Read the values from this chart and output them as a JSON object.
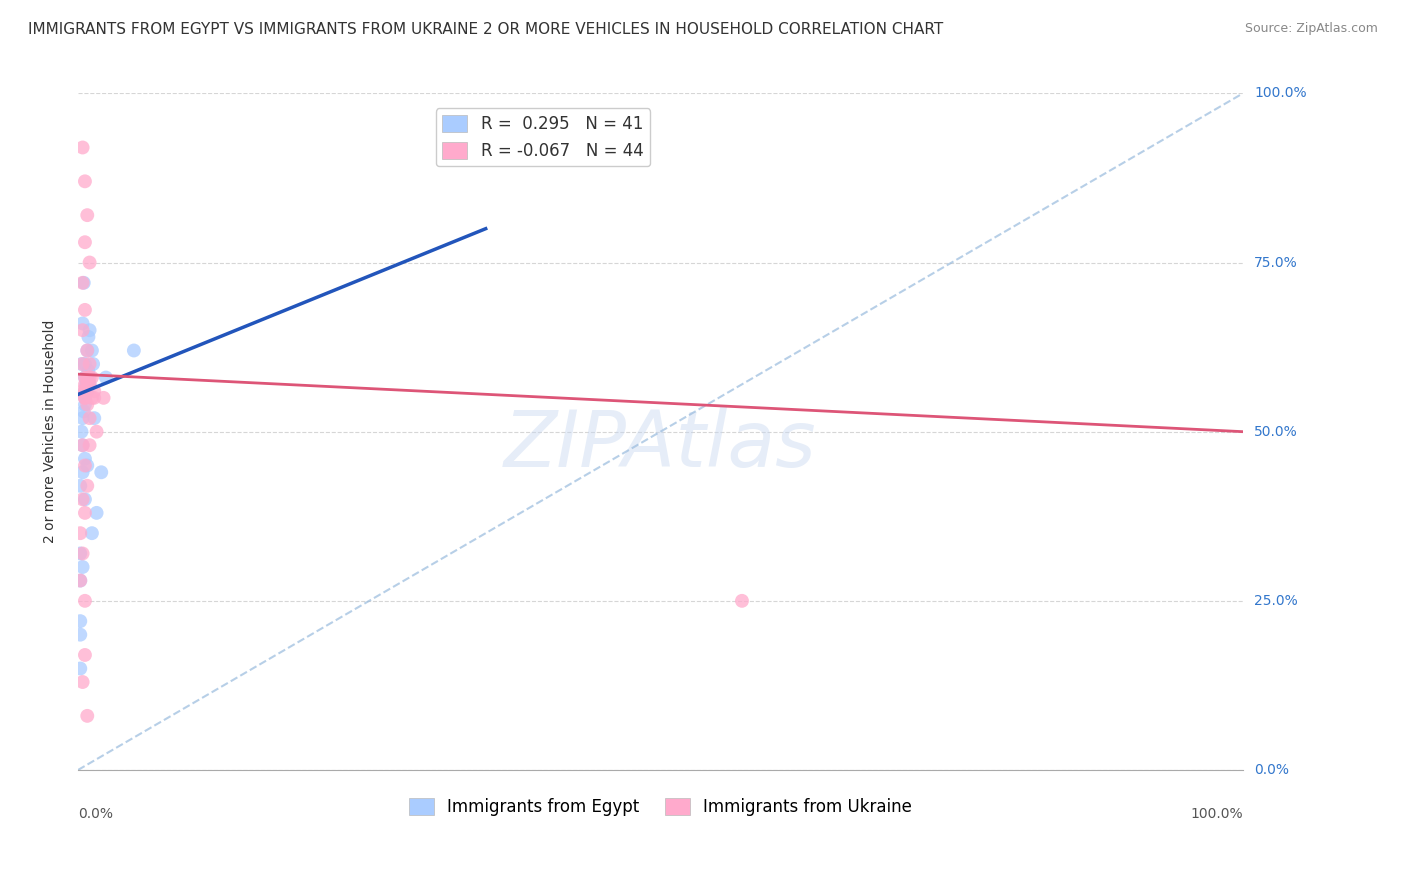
{
  "title": "IMMIGRANTS FROM EGYPT VS IMMIGRANTS FROM UKRAINE 2 OR MORE VEHICLES IN HOUSEHOLD CORRELATION CHART",
  "source": "Source: ZipAtlas.com",
  "ylabel": "2 or more Vehicles in Household",
  "ytick_labels": [
    "0.0%",
    "25.0%",
    "50.0%",
    "75.0%",
    "100.0%"
  ],
  "ytick_values": [
    0.0,
    0.25,
    0.5,
    0.75,
    1.0
  ],
  "xlim": [
    0.0,
    1.0
  ],
  "ylim": [
    0.0,
    1.0
  ],
  "legend_egypt_R": 0.295,
  "legend_egypt_N": 41,
  "legend_ukraine_R": -0.067,
  "legend_ukraine_N": 44,
  "egypt_color": "#aaccff",
  "ukraine_color": "#ffaacc",
  "egypt_line_color": "#2255bb",
  "ukraine_line_color": "#dd5577",
  "ref_line_color": "#99bbdd",
  "watermark_color": "#c8d8f0",
  "background_color": "#ffffff",
  "egypt_points_x": [
    0.003,
    0.005,
    0.004,
    0.006,
    0.005,
    0.007,
    0.008,
    0.006,
    0.009,
    0.01,
    0.008,
    0.009,
    0.012,
    0.006,
    0.008,
    0.013,
    0.004,
    0.006,
    0.003,
    0.005,
    0.008,
    0.006,
    0.01,
    0.004,
    0.002,
    0.004,
    0.006,
    0.008,
    0.006,
    0.014,
    0.024,
    0.048,
    0.002,
    0.012,
    0.016,
    0.02,
    0.002,
    0.004,
    0.002,
    0.002,
    0.002
  ],
  "egypt_points_y": [
    0.6,
    0.72,
    0.66,
    0.58,
    0.555,
    0.57,
    0.62,
    0.6,
    0.64,
    0.65,
    0.57,
    0.59,
    0.62,
    0.54,
    0.56,
    0.6,
    0.52,
    0.55,
    0.5,
    0.53,
    0.58,
    0.56,
    0.57,
    0.48,
    0.42,
    0.44,
    0.46,
    0.45,
    0.4,
    0.52,
    0.58,
    0.62,
    0.32,
    0.35,
    0.38,
    0.44,
    0.28,
    0.3,
    0.22,
    0.2,
    0.15
  ],
  "ukraine_points_x": [
    0.004,
    0.006,
    0.008,
    0.006,
    0.01,
    0.004,
    0.006,
    0.004,
    0.008,
    0.01,
    0.012,
    0.006,
    0.008,
    0.014,
    0.01,
    0.016,
    0.004,
    0.006,
    0.008,
    0.006,
    0.01,
    0.008,
    0.012,
    0.004,
    0.006,
    0.008,
    0.01,
    0.006,
    0.014,
    0.022,
    0.004,
    0.006,
    0.008,
    0.01,
    0.004,
    0.006,
    0.002,
    0.004,
    0.002,
    0.006,
    0.006,
    0.57,
    0.004,
    0.008
  ],
  "ukraine_points_y": [
    0.92,
    0.87,
    0.82,
    0.78,
    0.75,
    0.72,
    0.68,
    0.65,
    0.62,
    0.6,
    0.58,
    0.56,
    0.58,
    0.55,
    0.52,
    0.5,
    0.6,
    0.57,
    0.58,
    0.55,
    0.57,
    0.54,
    0.55,
    0.56,
    0.58,
    0.57,
    0.58,
    0.55,
    0.56,
    0.55,
    0.48,
    0.45,
    0.42,
    0.48,
    0.4,
    0.38,
    0.35,
    0.32,
    0.28,
    0.25,
    0.17,
    0.25,
    0.13,
    0.08
  ],
  "title_fontsize": 11,
  "axis_label_fontsize": 10,
  "tick_fontsize": 10,
  "legend_fontsize": 12,
  "marker_size": 100,
  "egypt_trendline_x0": 0.0,
  "egypt_trendline_y0": 0.555,
  "egypt_trendline_x1": 0.35,
  "egypt_trendline_y1": 0.8,
  "ukraine_trendline_x0": 0.0,
  "ukraine_trendline_y0": 0.585,
  "ukraine_trendline_x1": 1.0,
  "ukraine_trendline_y1": 0.5
}
